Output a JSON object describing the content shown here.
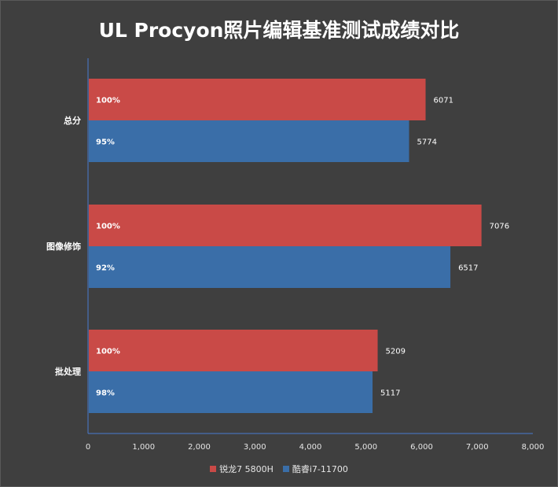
{
  "title": "UL Procyon照片编辑基准测试成绩对比",
  "colors": {
    "background": "#3f3f3f",
    "series1": "#c94a47",
    "series2": "#3a6ea8",
    "axis": "#4a7bd0",
    "text": "#ffffff"
  },
  "chart_data": {
    "type": "bar",
    "orientation": "horizontal",
    "title": "UL Procyon照片编辑基准测试成绩对比",
    "categories": [
      "总分",
      "图像修饰",
      "批处理"
    ],
    "series": [
      {
        "name": "锐龙7 5800H",
        "values": [
          6071,
          7076,
          5209
        ],
        "percent_labels": [
          "100%",
          "100%",
          "100%"
        ]
      },
      {
        "name": "酷睿i7-11700",
        "values": [
          5774,
          6517,
          5117
        ],
        "percent_labels": [
          "95%",
          "92%",
          "98%"
        ]
      }
    ],
    "xlim": [
      0,
      8000
    ],
    "xticks": [
      0,
      1000,
      2000,
      3000,
      4000,
      5000,
      6000,
      7000,
      8000
    ],
    "xtick_labels": [
      "0",
      "1,000",
      "2,000",
      "3,000",
      "4,000",
      "5,000",
      "6,000",
      "7,000",
      "8,000"
    ],
    "xlabel": "",
    "ylabel": "",
    "grid": false,
    "legend_position": "bottom"
  }
}
